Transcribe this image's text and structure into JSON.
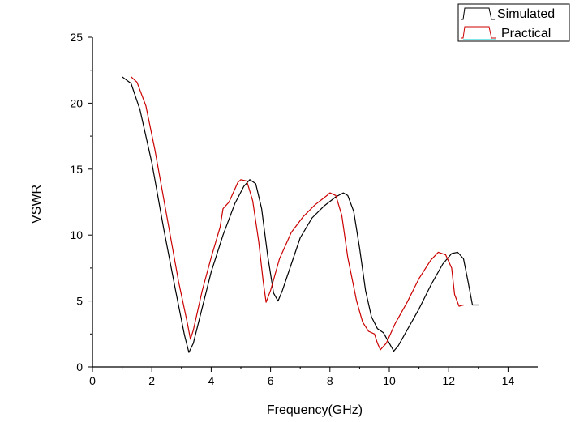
{
  "chart_data": {
    "type": "line",
    "title": "",
    "xlabel": "Frequency(GHz)",
    "ylabel": "VSWR",
    "xlim": [
      0,
      15
    ],
    "ylim": [
      0,
      25
    ],
    "xticks": [
      0,
      2,
      4,
      6,
      8,
      10,
      12,
      14
    ],
    "yticks": [
      0,
      5,
      10,
      15,
      20,
      25
    ],
    "legend_position": "top-right",
    "grid": false,
    "series": [
      {
        "name": "Simulated",
        "color": "#000000",
        "x": [
          1.0,
          1.3,
          1.6,
          2.0,
          2.4,
          2.8,
          3.1,
          3.25,
          3.4,
          3.7,
          4.0,
          4.4,
          4.8,
          5.1,
          5.3,
          5.5,
          5.7,
          5.9,
          6.1,
          6.25,
          6.4,
          6.7,
          7.0,
          7.4,
          7.8,
          8.2,
          8.45,
          8.6,
          8.8,
          9.0,
          9.2,
          9.4,
          9.6,
          9.8,
          10.0,
          10.15,
          10.3,
          10.6,
          11.0,
          11.4,
          11.8,
          12.1,
          12.3,
          12.5,
          12.65,
          12.8,
          13.0
        ],
        "values": [
          22.0,
          21.5,
          19.5,
          15.5,
          10.5,
          5.8,
          2.4,
          1.1,
          1.8,
          4.5,
          7.2,
          10.0,
          12.4,
          13.7,
          14.2,
          13.9,
          12.0,
          8.5,
          5.6,
          5.0,
          5.8,
          7.8,
          9.8,
          11.3,
          12.2,
          12.9,
          13.2,
          13.0,
          11.8,
          9.0,
          5.8,
          3.8,
          2.9,
          2.6,
          1.8,
          1.2,
          1.6,
          2.8,
          4.4,
          6.2,
          7.8,
          8.6,
          8.7,
          8.2,
          6.5,
          4.7,
          4.7
        ]
      },
      {
        "name": "Practical",
        "color": "#cc0000",
        "x": [
          1.3,
          1.5,
          1.8,
          2.1,
          2.5,
          2.9,
          3.2,
          3.3,
          3.4,
          3.7,
          4.0,
          4.3,
          4.4,
          4.6,
          4.9,
          5.0,
          5.2,
          5.4,
          5.6,
          5.75,
          5.85,
          6.0,
          6.3,
          6.7,
          7.1,
          7.5,
          7.9,
          8.0,
          8.2,
          8.4,
          8.6,
          8.9,
          9.1,
          9.3,
          9.5,
          9.6,
          9.7,
          9.9,
          10.2,
          10.6,
          11.0,
          11.4,
          11.65,
          11.9,
          12.1,
          12.2,
          12.35,
          12.5
        ],
        "values": [
          22.0,
          21.6,
          19.8,
          16.5,
          11.5,
          6.5,
          3.3,
          2.1,
          2.8,
          5.8,
          8.3,
          10.6,
          12.0,
          12.5,
          14.0,
          14.2,
          14.1,
          12.6,
          9.5,
          6.5,
          4.9,
          5.8,
          8.2,
          10.2,
          11.4,
          12.3,
          13.0,
          13.2,
          13.0,
          11.5,
          8.3,
          5.0,
          3.4,
          2.7,
          2.5,
          1.8,
          1.3,
          1.8,
          3.3,
          4.9,
          6.7,
          8.1,
          8.7,
          8.5,
          7.5,
          5.5,
          4.6,
          4.7
        ]
      }
    ]
  }
}
